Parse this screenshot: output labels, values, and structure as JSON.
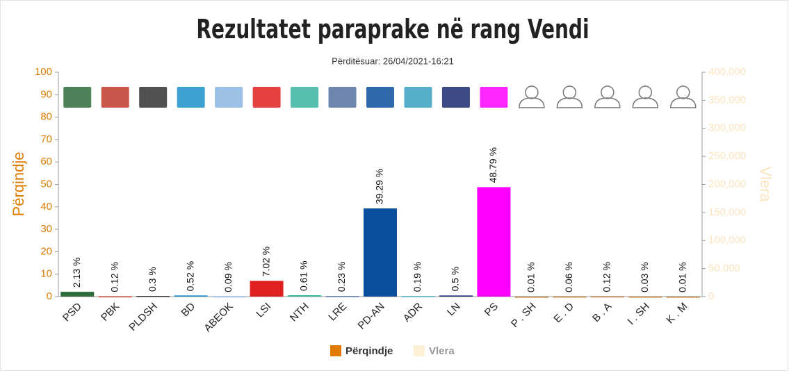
{
  "chart_data": {
    "type": "bar",
    "title": "Rezultatet paraprake në rang Vendi",
    "subtitle": "Përditësuar: 26/04/2021-16:21",
    "y_label": "Përqindje",
    "y2_label": "Vlera",
    "categories": [
      "PSD",
      "PBK",
      "PLDSH",
      "BD",
      "ABEOK",
      "LSI",
      "NTH",
      "LRE",
      "PD-AN",
      "ADR",
      "LN",
      "PS",
      "P . SH",
      "E . D",
      "B . A",
      "I . SH",
      "K . M"
    ],
    "series": [
      {
        "name": "Përqindje",
        "color": "#e07b00",
        "values": [
          2.13,
          0.12,
          0.3,
          0.52,
          0.09,
          7.02,
          0.61,
          0.23,
          39.29,
          0.19,
          0.5,
          48.79,
          0.01,
          0.06,
          0.12,
          0.03,
          0.01
        ],
        "value_labels": [
          "2.13 %",
          "0.12 %",
          "0.3 %",
          "0.52 %",
          "0.09 %",
          "7.02 %",
          "0.61 %",
          "0.23 %",
          "39.29 %",
          "0.19 %",
          "0.5 %",
          "48.79 %",
          "0.01 %",
          "0.06 %",
          "0.12 %",
          "0.03 %",
          "0.01 %"
        ],
        "colors": [
          "#2e6b3a",
          "#c0392b",
          "#333333",
          "#1a8fc9",
          "#8ab4e0",
          "#e02020",
          "#3bb3a0",
          "#5570a0",
          "#0a4f9c",
          "#3aa0c0",
          "#1a2a70",
          "#ff00ff",
          "#b07030",
          "#b07030",
          "#b07030",
          "#b07030",
          "#b07030"
        ]
      },
      {
        "name": "Vlera",
        "color": "#fdf0d5",
        "axis": "y2"
      }
    ],
    "ylim": [
      0,
      100
    ],
    "yticks": [
      0,
      10,
      20,
      30,
      40,
      50,
      60,
      70,
      80,
      90,
      100
    ],
    "y2lim": [
      0,
      400000
    ],
    "y2ticks": [
      0,
      {
        "value": 50000,
        "label": "50,000"
      },
      {
        "value": 100000,
        "label": "100,000"
      },
      {
        "value": 150000,
        "label": "150,000"
      },
      {
        "value": 200000,
        "label": "200,000"
      },
      {
        "value": 250000,
        "label": "250,000"
      },
      {
        "value": 300000,
        "label": "300,000"
      },
      {
        "value": 350000,
        "label": "350,000"
      },
      {
        "value": 400000,
        "label": "400,000"
      }
    ]
  }
}
